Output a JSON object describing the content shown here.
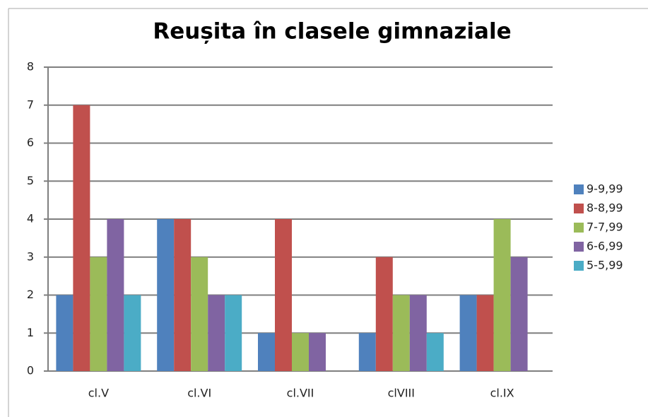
{
  "chart_data": {
    "type": "bar",
    "title": "Reușita în clasele  gimnaziale",
    "categories": [
      "cl.V",
      "cl.VI",
      "cl.VII",
      "clVIII",
      "cl.IX"
    ],
    "series": [
      {
        "name": "9-9,99",
        "color": "#4f81bd",
        "values": [
          2,
          4,
          1,
          1,
          2
        ]
      },
      {
        "name": "8-8,99",
        "color": "#c0504d",
        "values": [
          7,
          4,
          4,
          3,
          2
        ]
      },
      {
        "name": "7-7,99",
        "color": "#9bbb59",
        "values": [
          3,
          3,
          1,
          2,
          4
        ]
      },
      {
        "name": "6-6,99",
        "color": "#8064a2",
        "values": [
          4,
          2,
          1,
          2,
          3
        ]
      },
      {
        "name": "5-5,99",
        "color": "#4bacc6",
        "values": [
          2,
          2,
          0,
          1,
          0
        ]
      }
    ],
    "ylim": [
      0,
      8
    ],
    "yticks": [
      0,
      1,
      2,
      3,
      4,
      5,
      6,
      7,
      8
    ],
    "grid": true,
    "legend": "right"
  }
}
